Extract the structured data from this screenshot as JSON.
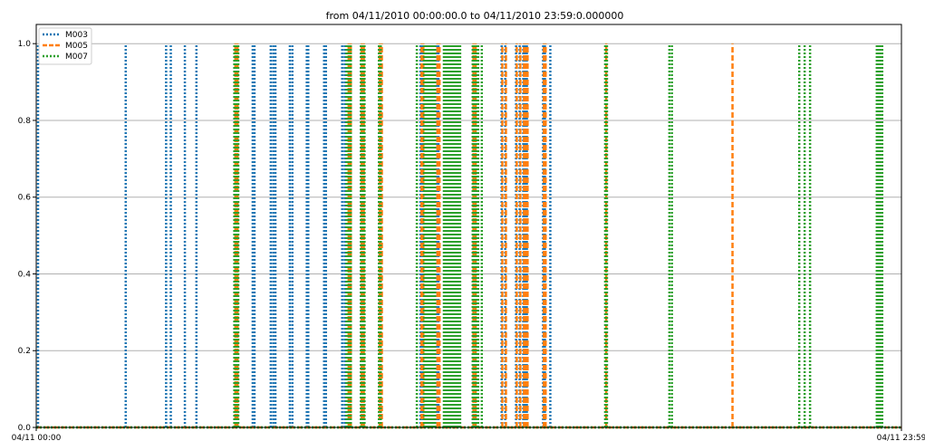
{
  "chart_data": {
    "type": "line",
    "title": "from 04/11/2010 00:00:00.0 to 04/11/2010 23:59:0.000000",
    "xlabel": "",
    "ylabel": "",
    "x_tick_labels": [
      "04/11 00:00",
      "04/11 23:59"
    ],
    "xlim_hours": [
      0,
      23.983
    ],
    "ylim": [
      0,
      1.05
    ],
    "y_ticks": [
      0.0,
      0.2,
      0.4,
      0.6,
      0.8,
      1.0
    ],
    "grid": "horizontal",
    "legend_position": "top-left",
    "series": [
      {
        "name": "M003",
        "color": "#1f77b4",
        "style": "dotted",
        "on_times_hours": [
          0.05,
          2.48,
          3.6,
          3.73,
          4.12,
          4.44,
          5.5,
          5.55,
          6.0,
          6.05,
          6.5,
          6.57,
          6.63,
          7.03,
          7.1,
          7.5,
          7.54,
          7.98,
          8.03,
          8.48,
          8.55,
          8.61,
          8.67,
          9.0,
          9.05,
          9.5,
          9.55,
          10.65,
          10.7,
          11.1,
          11.15,
          11.4,
          12.1,
          12.15,
          12.9,
          13.0,
          13.3,
          13.4,
          13.5,
          13.55,
          13.6,
          14.05,
          14.1,
          14.25
        ],
        "off_value": 0
      },
      {
        "name": "M005",
        "color": "#ff7f0e",
        "style": "dashed",
        "on_times_hours": [
          5.52,
          5.58,
          8.66,
          8.72,
          9.02,
          9.08,
          9.52,
          9.58,
          10.68,
          10.73,
          11.12,
          11.18,
          12.12,
          12.18,
          12.92,
          13.02,
          13.32,
          13.42,
          13.52,
          13.57,
          13.62,
          14.07,
          14.12,
          15.8,
          19.3
        ],
        "off_value": 0
      },
      {
        "name": "M007",
        "color": "#2ca02c",
        "style": "dotted",
        "on_times_hours": [
          5.49,
          5.51,
          5.53,
          5.56,
          5.58,
          5.6,
          8.6,
          8.63,
          8.66,
          8.69,
          8.72,
          9.0,
          9.02,
          9.04,
          9.06,
          9.08,
          9.1,
          9.5,
          9.55,
          10.55,
          10.75,
          10.8,
          10.85,
          10.9,
          10.95,
          11.0,
          11.05,
          11.3,
          11.35,
          11.4,
          11.45,
          11.5,
          11.55,
          11.6,
          11.65,
          11.7,
          11.75,
          12.1,
          12.15,
          12.2,
          12.25,
          12.35,
          15.77,
          15.82,
          17.55,
          17.62,
          21.15,
          21.3,
          21.45,
          23.3,
          23.35,
          23.4,
          23.45
        ],
        "off_value": 0
      }
    ]
  }
}
